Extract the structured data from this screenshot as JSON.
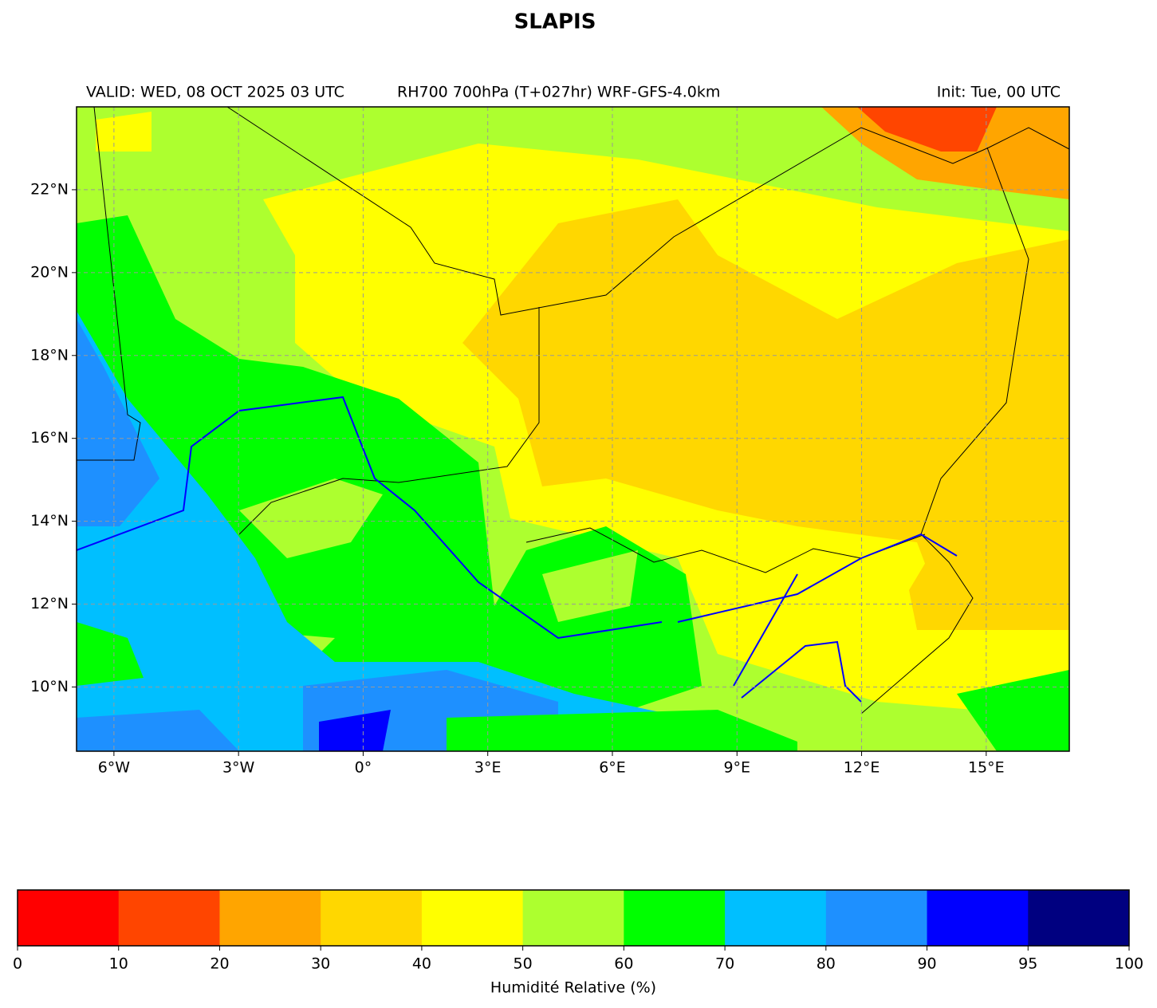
{
  "title": "SLAPIS",
  "header": {
    "valid": "VALID: WED, 08 OCT 2025 03 UTC",
    "product": "RH700 700hPa (T+027hr) WRF-GFS-4.0km",
    "init": "Init: Tue, 00 UTC"
  },
  "map": {
    "lonlim": [
      -6.9,
      17
    ],
    "latlim": [
      8.45,
      24
    ],
    "xticks": [
      {
        "value": -6,
        "label": "6°W"
      },
      {
        "value": -3,
        "label": "3°W"
      },
      {
        "value": 0,
        "label": "0°"
      },
      {
        "value": 3,
        "label": "3°E"
      },
      {
        "value": 6,
        "label": "6°E"
      },
      {
        "value": 9,
        "label": "9°E"
      },
      {
        "value": 12,
        "label": "12°E"
      },
      {
        "value": 15,
        "label": "15°E"
      }
    ],
    "yticks": [
      {
        "value": 10,
        "label": "10°N"
      },
      {
        "value": 12,
        "label": "12°N"
      },
      {
        "value": 14,
        "label": "14°N"
      },
      {
        "value": 16,
        "label": "16°N"
      },
      {
        "value": 18,
        "label": "18°N"
      },
      {
        "value": 20,
        "label": "20°N"
      },
      {
        "value": 22,
        "label": "22°N"
      }
    ],
    "grid": true
  },
  "colorbar": {
    "label": "Humidité Relative (%)",
    "ticks": [
      0,
      10,
      20,
      30,
      40,
      50,
      60,
      70,
      80,
      90,
      95,
      100
    ],
    "colors": [
      "#ff0000",
      "#ff4500",
      "#ffa500",
      "#ffd700",
      "#ffff00",
      "#adff2f",
      "#00ff00",
      "#00bfff",
      "#1e90ff",
      "#0000ff",
      "#000080"
    ]
  }
}
